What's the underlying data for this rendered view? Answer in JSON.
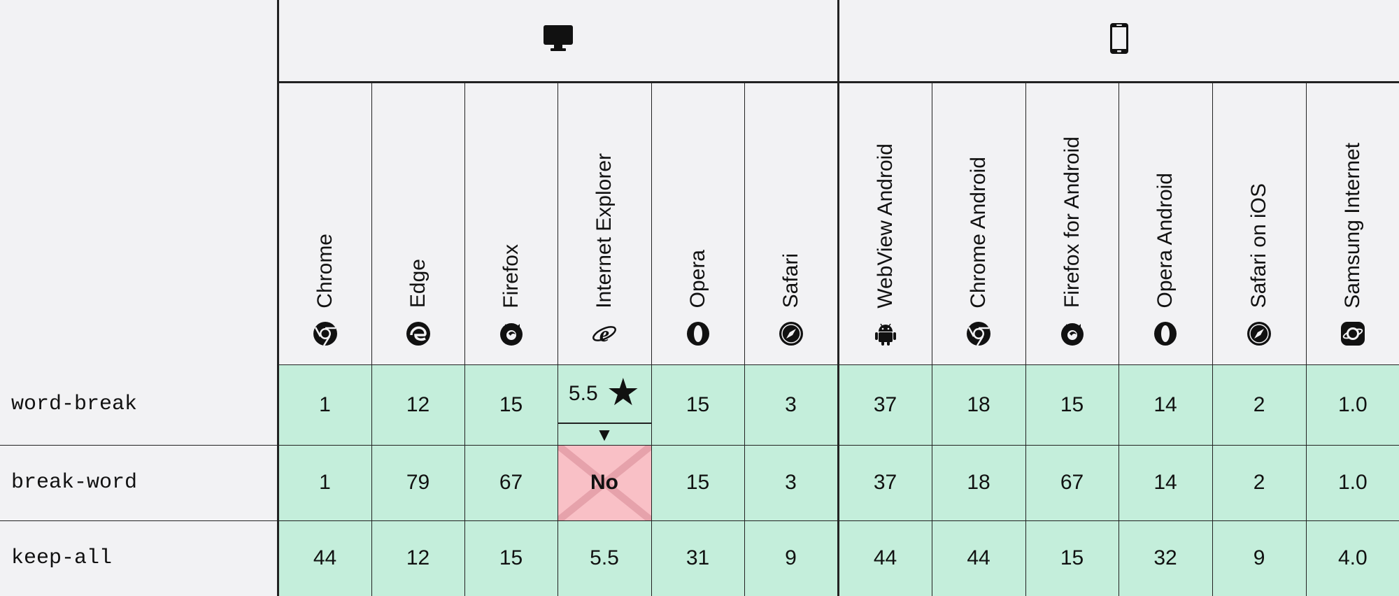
{
  "platforms": {
    "desktop": {
      "icon": "desktop-icon"
    },
    "mobile": {
      "icon": "mobile-phone-icon"
    }
  },
  "browsers": [
    {
      "name": "Chrome",
      "icon": "chrome-icon"
    },
    {
      "name": "Edge",
      "icon": "edge-icon"
    },
    {
      "name": "Firefox",
      "icon": "firefox-icon"
    },
    {
      "name": "Internet Explorer",
      "icon": "internet-explorer-icon"
    },
    {
      "name": "Opera",
      "icon": "opera-icon"
    },
    {
      "name": "Safari",
      "icon": "safari-icon"
    },
    {
      "name": "WebView Android",
      "icon": "android-icon"
    },
    {
      "name": "Chrome Android",
      "icon": "chrome-icon"
    },
    {
      "name": "Firefox for Android",
      "icon": "firefox-icon"
    },
    {
      "name": "Opera Android",
      "icon": "opera-icon"
    },
    {
      "name": "Safari on iOS",
      "icon": "safari-icon"
    },
    {
      "name": "Samsung Internet",
      "icon": "samsung-internet-icon"
    }
  ],
  "rows": [
    {
      "feature": "word-break",
      "values": [
        "1",
        "12",
        "15",
        "5.5",
        "15",
        "3",
        "37",
        "18",
        "15",
        "14",
        "2",
        "1.0"
      ]
    },
    {
      "feature": "break-word",
      "values": [
        "1",
        "79",
        "67",
        "No",
        "15",
        "3",
        "37",
        "18",
        "67",
        "14",
        "2",
        "1.0"
      ]
    },
    {
      "feature": "keep-all",
      "values": [
        "44",
        "12",
        "15",
        "5.5",
        "31",
        "9",
        "44",
        "44",
        "15",
        "32",
        "9",
        "4.0"
      ]
    }
  ],
  "symbols": {
    "note_star": "★",
    "expand_toggle": "▼"
  },
  "colors": {
    "supported": "#c4eedb",
    "unsupported": "#f9c0c6",
    "background": "#f2f2f4",
    "border": "#222222"
  }
}
